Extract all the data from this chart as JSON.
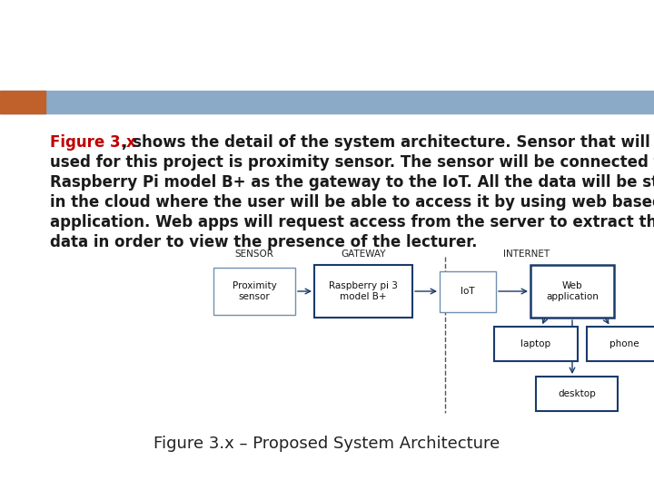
{
  "bg_color": "#ffffff",
  "header_bar_color": "#8baac8",
  "header_orange_color": "#c0602a",
  "title_red": "#c00000",
  "title_black": "#1a1a1a",
  "body_text": ", shows the detail of the system architecture. Sensor that will be\nused for this project is proximity sensor. The sensor will be connected to\nRaspberry Pi model B+ as the gateway to the IoT. All the data will be stored\nin the cloud where the user will be able to access it by using web based\napplication. Web apps will request access from the server to extract the\ndata in order to view the presence of the lecturer.",
  "title_prefix": "Figure 3.x",
  "caption": "Figure 3.x – Proposed System Architecture",
  "sensor_label": "SENSOR",
  "gateway_label": "GATEWAY",
  "internet_label": "INTERNET",
  "box_sensor": "Proximity\nsensor",
  "box_gateway": "Raspberry pi 3\nmodel B+",
  "box_iot": "IoT",
  "box_web": "Web\napplication",
  "box_laptop": "laptop",
  "box_phone": "phone",
  "box_desktop": "desktop"
}
